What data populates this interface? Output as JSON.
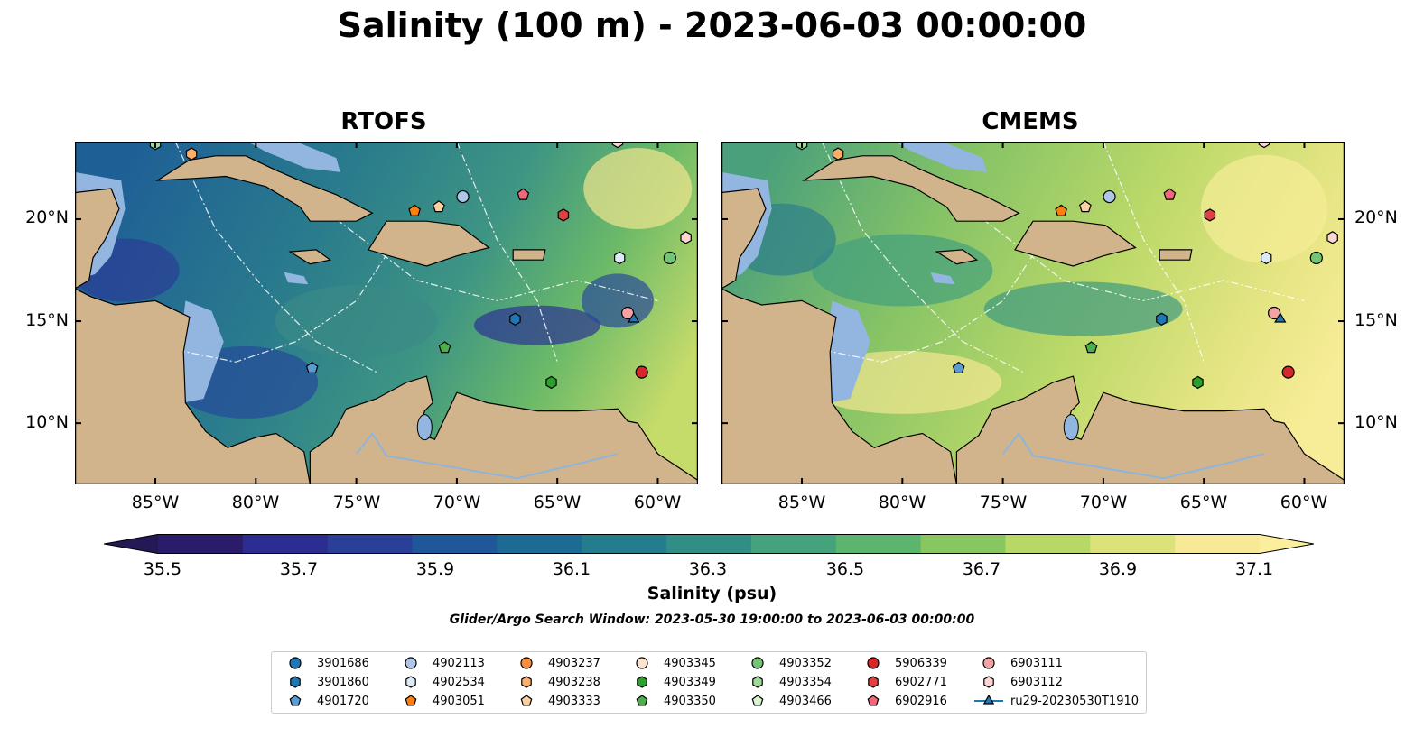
{
  "title": "Salinity (100 m) - 2023-06-03 00:00:00",
  "panels": [
    {
      "title": "RTOFS",
      "theme": "rtofs"
    },
    {
      "title": "CMEMS",
      "theme": "cmems"
    }
  ],
  "lat_ticks": [
    "20°N",
    "15°N",
    "10°N"
  ],
  "lon_ticks": [
    "85°W",
    "80°W",
    "75°W",
    "70°W",
    "65°W",
    "60°W"
  ],
  "colorbar": {
    "label": "Salinity (psu)",
    "ticks": [
      "35.5",
      "35.7",
      "35.9",
      "36.1",
      "36.3",
      "36.5",
      "36.7",
      "36.9",
      "37.1"
    ],
    "colors": [
      "#2a1c6b",
      "#2b2e90",
      "#293f98",
      "#20579a",
      "#1b6b94",
      "#237d8d",
      "#318e86",
      "#44a27c",
      "#5cb56d",
      "#88c760",
      "#b7d864",
      "#dbe27a",
      "#f7e995"
    ],
    "extend_min_color": "#241954",
    "extend_max_color": "#fbee9e"
  },
  "search_window": "Glider/Argo Search Window: 2023-05-30 19:00:00 to 2023-06-03 00:00:00",
  "legend": [
    {
      "id": "3901686",
      "marker": "circle",
      "color": "#1f77b4"
    },
    {
      "id": "3901860",
      "marker": "hexagon",
      "color": "#1f77b4"
    },
    {
      "id": "4901720",
      "marker": "pentagon",
      "color": "#5a9bd4"
    },
    {
      "id": "4902113",
      "marker": "circle",
      "color": "#aec7e8"
    },
    {
      "id": "4902534",
      "marker": "hexagon",
      "color": "#dceaf7"
    },
    {
      "id": "4903051",
      "marker": "pentagon",
      "color": "#ff7f0e"
    },
    {
      "id": "4903237",
      "marker": "circle",
      "color": "#fd8d3c"
    },
    {
      "id": "4903238",
      "marker": "hexagon",
      "color": "#fdae6b"
    },
    {
      "id": "4903333",
      "marker": "pentagon",
      "color": "#fdd0a2"
    },
    {
      "id": "4903345",
      "marker": "circle",
      "color": "#fde3cc"
    },
    {
      "id": "4903349",
      "marker": "hexagon",
      "color": "#2ca02c"
    },
    {
      "id": "4903350",
      "marker": "pentagon",
      "color": "#4daf4a"
    },
    {
      "id": "4903352",
      "marker": "circle",
      "color": "#74c476"
    },
    {
      "id": "4903354",
      "marker": "hexagon",
      "color": "#a1d99b"
    },
    {
      "id": "4903466",
      "marker": "pentagon",
      "color": "#d9f5d0"
    },
    {
      "id": "5906339",
      "marker": "circle",
      "color": "#d62728"
    },
    {
      "id": "6902771",
      "marker": "hexagon",
      "color": "#e0403f"
    },
    {
      "id": "6902916",
      "marker": "pentagon",
      "color": "#f0687a"
    },
    {
      "id": "6903111",
      "marker": "circle",
      "color": "#f4a3a3"
    },
    {
      "id": "6903112",
      "marker": "hexagon",
      "color": "#fcd5d5"
    },
    {
      "id": "ru29-20230530T1910",
      "marker": "triangle-line",
      "color": "#1f77b4"
    }
  ],
  "floats": [
    {
      "id": "4903354",
      "lon": -85.0,
      "lat": 23.7
    },
    {
      "id": "4903238",
      "lon": -83.2,
      "lat": 23.2
    },
    {
      "id": "6903112",
      "lon": -62.0,
      "lat": 23.8
    },
    {
      "id": "4902113",
      "lon": -69.7,
      "lat": 21.1
    },
    {
      "id": "6902916",
      "lon": -66.7,
      "lat": 21.2
    },
    {
      "id": "4903051",
      "lon": -72.1,
      "lat": 20.4
    },
    {
      "id": "4903333",
      "lon": -70.9,
      "lat": 20.6
    },
    {
      "id": "6902771",
      "lon": -64.7,
      "lat": 20.2
    },
    {
      "id": "6903112",
      "lon": -58.6,
      "lat": 19.1
    },
    {
      "id": "4902534",
      "lon": -61.9,
      "lat": 18.1
    },
    {
      "id": "4903352",
      "lon": -59.4,
      "lat": 18.1
    },
    {
      "id": "6903111",
      "lon": -61.5,
      "lat": 15.4
    },
    {
      "id": "3901860",
      "lon": -67.1,
      "lat": 15.1
    },
    {
      "id": "4903350",
      "lon": -70.6,
      "lat": 13.7
    },
    {
      "id": "4901720",
      "lon": -77.2,
      "lat": 12.7
    },
    {
      "id": "4903349",
      "lon": -65.3,
      "lat": 12.0
    },
    {
      "id": "5906339",
      "lon": -60.8,
      "lat": 12.5
    },
    {
      "id": "ru29-20230530T1910",
      "lon": -61.2,
      "lat": 15.1
    }
  ]
}
